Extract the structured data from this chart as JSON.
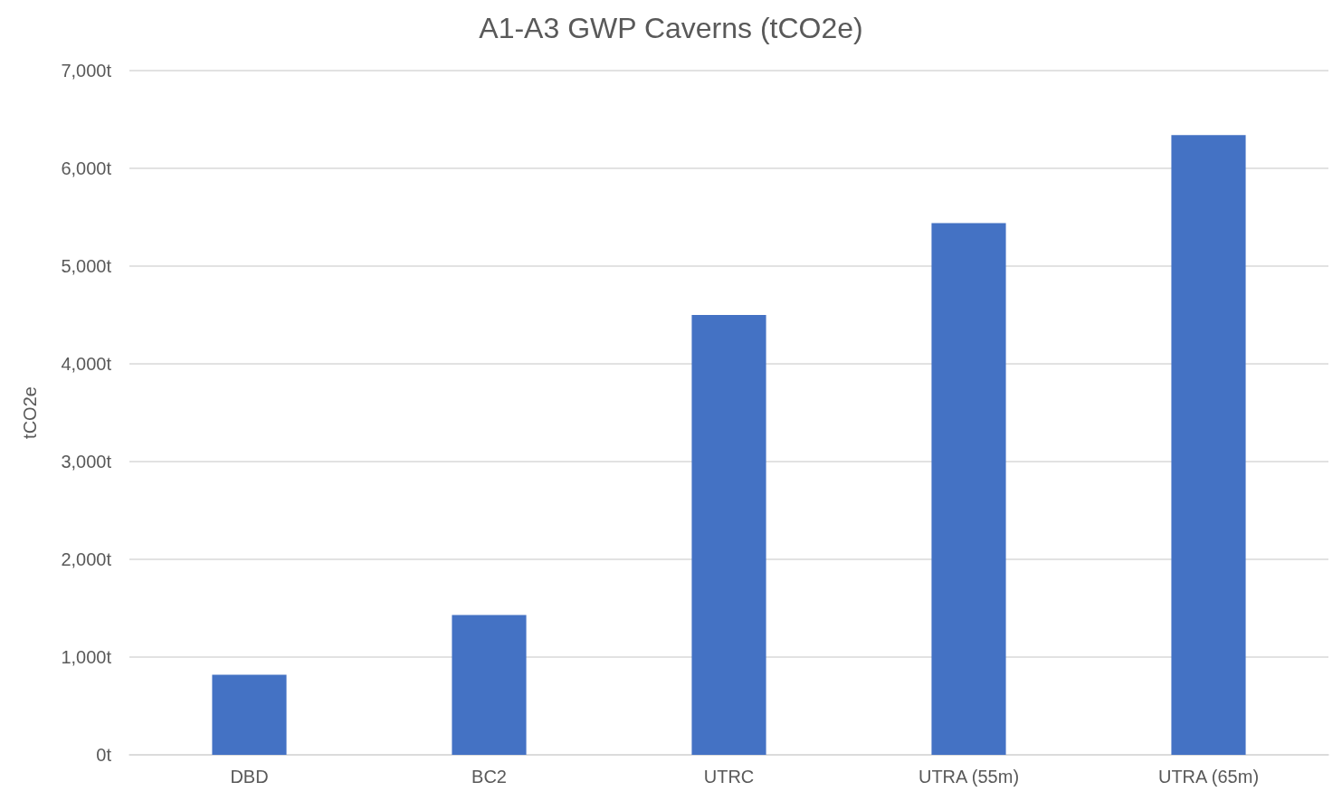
{
  "chart_data": {
    "type": "bar",
    "title": "A1-A3 GWP Caverns (tCO2e)",
    "ylabel": "tCO2e",
    "categories": [
      "DBD",
      "BC2",
      "UTRC",
      "UTRA (55m)",
      "UTRA (65m)"
    ],
    "values": [
      820,
      1430,
      4500,
      5440,
      6340
    ],
    "color": "#4472c4",
    "ylim": [
      0,
      7000
    ],
    "yticks": [
      {
        "value": 0,
        "label": "0t"
      },
      {
        "value": 1000,
        "label": "1,000t"
      },
      {
        "value": 2000,
        "label": "2,000t"
      },
      {
        "value": 3000,
        "label": "3,000t"
      },
      {
        "value": 4000,
        "label": "4,000t"
      },
      {
        "value": 5000,
        "label": "5,000t"
      },
      {
        "value": 6000,
        "label": "6,000t"
      },
      {
        "value": 7000,
        "label": "7,000t"
      }
    ],
    "grid": "y"
  }
}
